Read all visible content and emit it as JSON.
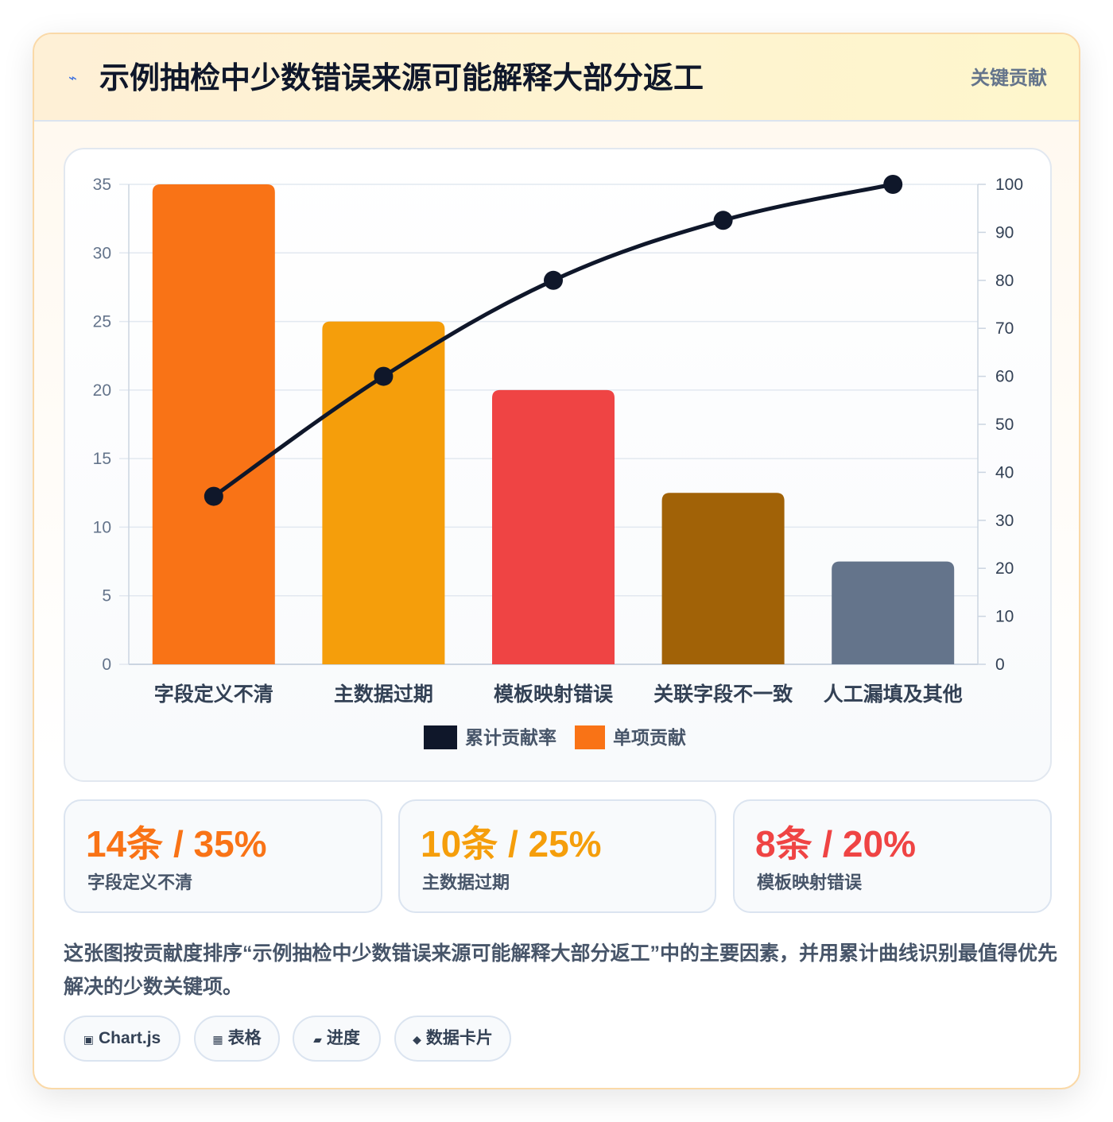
{
  "header": {
    "icon": "lightning-icon",
    "title": "示例抽检中少数错误来源可能解释大部分返工",
    "badge": "关键贡献"
  },
  "chart_data": {
    "type": "bar",
    "categories": [
      "字段定义不清",
      "主数据过期",
      "模板映射错误",
      "关联字段不一致",
      "人工漏填及其他"
    ],
    "series": [
      {
        "name": "累计贡献率",
        "type": "line",
        "axis": "right",
        "color": "#0f172a",
        "values": [
          35,
          60,
          80,
          92.5,
          100
        ]
      },
      {
        "name": "单项贡献",
        "type": "bar",
        "axis": "left",
        "colors": [
          "#f97316",
          "#f59e0b",
          "#ef4444",
          "#a16207",
          "#64748b"
        ],
        "values": [
          35,
          25,
          20,
          12.5,
          7.5
        ]
      }
    ],
    "y_left": {
      "min": 0,
      "max": 35,
      "ticks": [
        "0",
        "5",
        "10",
        "15",
        "20",
        "25",
        "30",
        "35"
      ]
    },
    "y_right": {
      "min": 0,
      "max": 100,
      "ticks": [
        "0",
        "10",
        "20",
        "30",
        "40",
        "50",
        "60",
        "70",
        "80",
        "90",
        "100"
      ]
    },
    "grid": true,
    "legend": "bottom"
  },
  "stats": [
    {
      "value": "14条 / 35%",
      "label": "字段定义不清",
      "color": "#f97316"
    },
    {
      "value": "10条 / 25%",
      "label": "主数据过期",
      "color": "#f59e0b"
    },
    {
      "value": "8条 / 20%",
      "label": "模板映射错误",
      "color": "#ef4444"
    }
  ],
  "description": "这张图按贡献度排序“示例抽检中少数错误来源可能解释大部分返工”中的主要因素，并用累计曲线识别最值得优先解决的少数关键项。",
  "tags": [
    {
      "icon": "▣",
      "label": "Chart.js"
    },
    {
      "icon": "▦",
      "label": "表格"
    },
    {
      "icon": "▰",
      "label": "进度"
    },
    {
      "icon": "◆",
      "label": "数据卡片"
    }
  ]
}
